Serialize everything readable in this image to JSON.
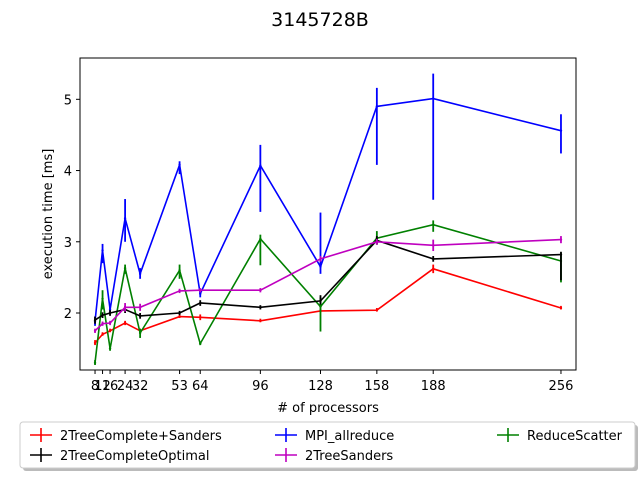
{
  "chart_data": {
    "type": "line",
    "title": "3145728B",
    "xlabel": "# of processors",
    "ylabel": "execution time [ms]",
    "xlim": [
      0,
      264
    ],
    "ylim": [
      1.2,
      5.58
    ],
    "x_ticks": [
      8,
      12,
      16,
      24,
      32,
      53,
      64,
      96,
      128,
      158,
      188,
      256
    ],
    "y_ticks": [
      2,
      3,
      4,
      5
    ],
    "legend_position": "below plot",
    "series": [
      {
        "name": "2TreeComplete+Sanders",
        "color": "#ff0000",
        "x": [
          8,
          12,
          16,
          24,
          32,
          53,
          64,
          96,
          128,
          158,
          188,
          256
        ],
        "y": [
          1.58,
          1.7,
          1.75,
          1.86,
          1.75,
          1.95,
          1.94,
          1.89,
          2.03,
          2.04,
          2.62,
          2.07
        ],
        "err_low": [
          1.55,
          1.68,
          1.73,
          1.83,
          1.72,
          1.93,
          1.9,
          1.87,
          2.01,
          2.02,
          2.56,
          2.05
        ],
        "err_high": [
          1.62,
          1.73,
          1.78,
          1.89,
          1.78,
          1.98,
          1.98,
          1.92,
          2.06,
          2.07,
          2.68,
          2.1
        ]
      },
      {
        "name": "MPI_allreduce",
        "color": "#0000ff",
        "x": [
          8,
          12,
          16,
          24,
          32,
          53,
          64,
          96,
          128,
          158,
          188,
          256
        ],
        "y": [
          1.88,
          2.88,
          2.05,
          3.33,
          2.55,
          4.08,
          2.27,
          4.07,
          2.65,
          4.9,
          5.01,
          4.56
        ],
        "err_low": [
          1.82,
          2.7,
          1.98,
          3.0,
          2.48,
          3.95,
          2.22,
          3.42,
          2.55,
          4.08,
          3.59,
          4.24
        ],
        "err_high": [
          1.95,
          2.97,
          2.12,
          3.6,
          2.63,
          4.13,
          2.32,
          4.36,
          3.41,
          5.16,
          5.36,
          4.79
        ]
      },
      {
        "name": "ReduceScatter",
        "color": "#008000",
        "x": [
          8,
          12,
          16,
          24,
          32,
          53,
          64,
          96,
          128,
          158,
          188,
          256
        ],
        "y": [
          1.3,
          2.2,
          1.5,
          2.63,
          1.72,
          2.6,
          1.57,
          3.04,
          2.09,
          3.05,
          3.24,
          2.73
        ],
        "err_low": [
          1.27,
          2.05,
          1.47,
          2.55,
          1.65,
          2.48,
          1.55,
          2.67,
          1.74,
          2.96,
          3.14,
          2.43
        ],
        "err_high": [
          1.34,
          2.32,
          1.53,
          2.68,
          1.78,
          2.68,
          1.6,
          3.1,
          2.22,
          3.15,
          3.3,
          2.85
        ]
      },
      {
        "name": "2TreeCompleteOptimal",
        "color": "#000000",
        "x": [
          8,
          12,
          16,
          24,
          32,
          53,
          64,
          96,
          128,
          158,
          188,
          256
        ],
        "y": [
          1.9,
          1.97,
          2.0,
          2.05,
          1.96,
          2.0,
          2.14,
          2.08,
          2.17,
          3.02,
          2.76,
          2.82
        ],
        "err_low": [
          1.85,
          1.93,
          1.96,
          2.0,
          1.92,
          1.97,
          2.1,
          2.05,
          2.12,
          2.96,
          2.72,
          2.46
        ],
        "err_high": [
          1.95,
          2.01,
          2.04,
          2.1,
          2.0,
          2.03,
          2.18,
          2.11,
          2.25,
          3.08,
          2.8,
          2.86
        ]
      },
      {
        "name": "2TreeSanders",
        "color": "#bf00bf",
        "x": [
          8,
          12,
          16,
          24,
          32,
          53,
          64,
          96,
          128,
          158,
          188,
          256
        ],
        "y": [
          1.75,
          1.85,
          1.86,
          2.08,
          2.08,
          2.31,
          2.32,
          2.32,
          2.76,
          3.0,
          2.95,
          3.03
        ],
        "err_low": [
          1.72,
          1.82,
          1.83,
          2.02,
          2.03,
          2.28,
          2.29,
          2.29,
          2.72,
          2.96,
          2.87,
          2.98
        ],
        "err_high": [
          1.78,
          1.88,
          1.89,
          2.14,
          2.13,
          2.34,
          2.35,
          2.35,
          2.8,
          3.04,
          3.03,
          3.08
        ]
      }
    ]
  }
}
